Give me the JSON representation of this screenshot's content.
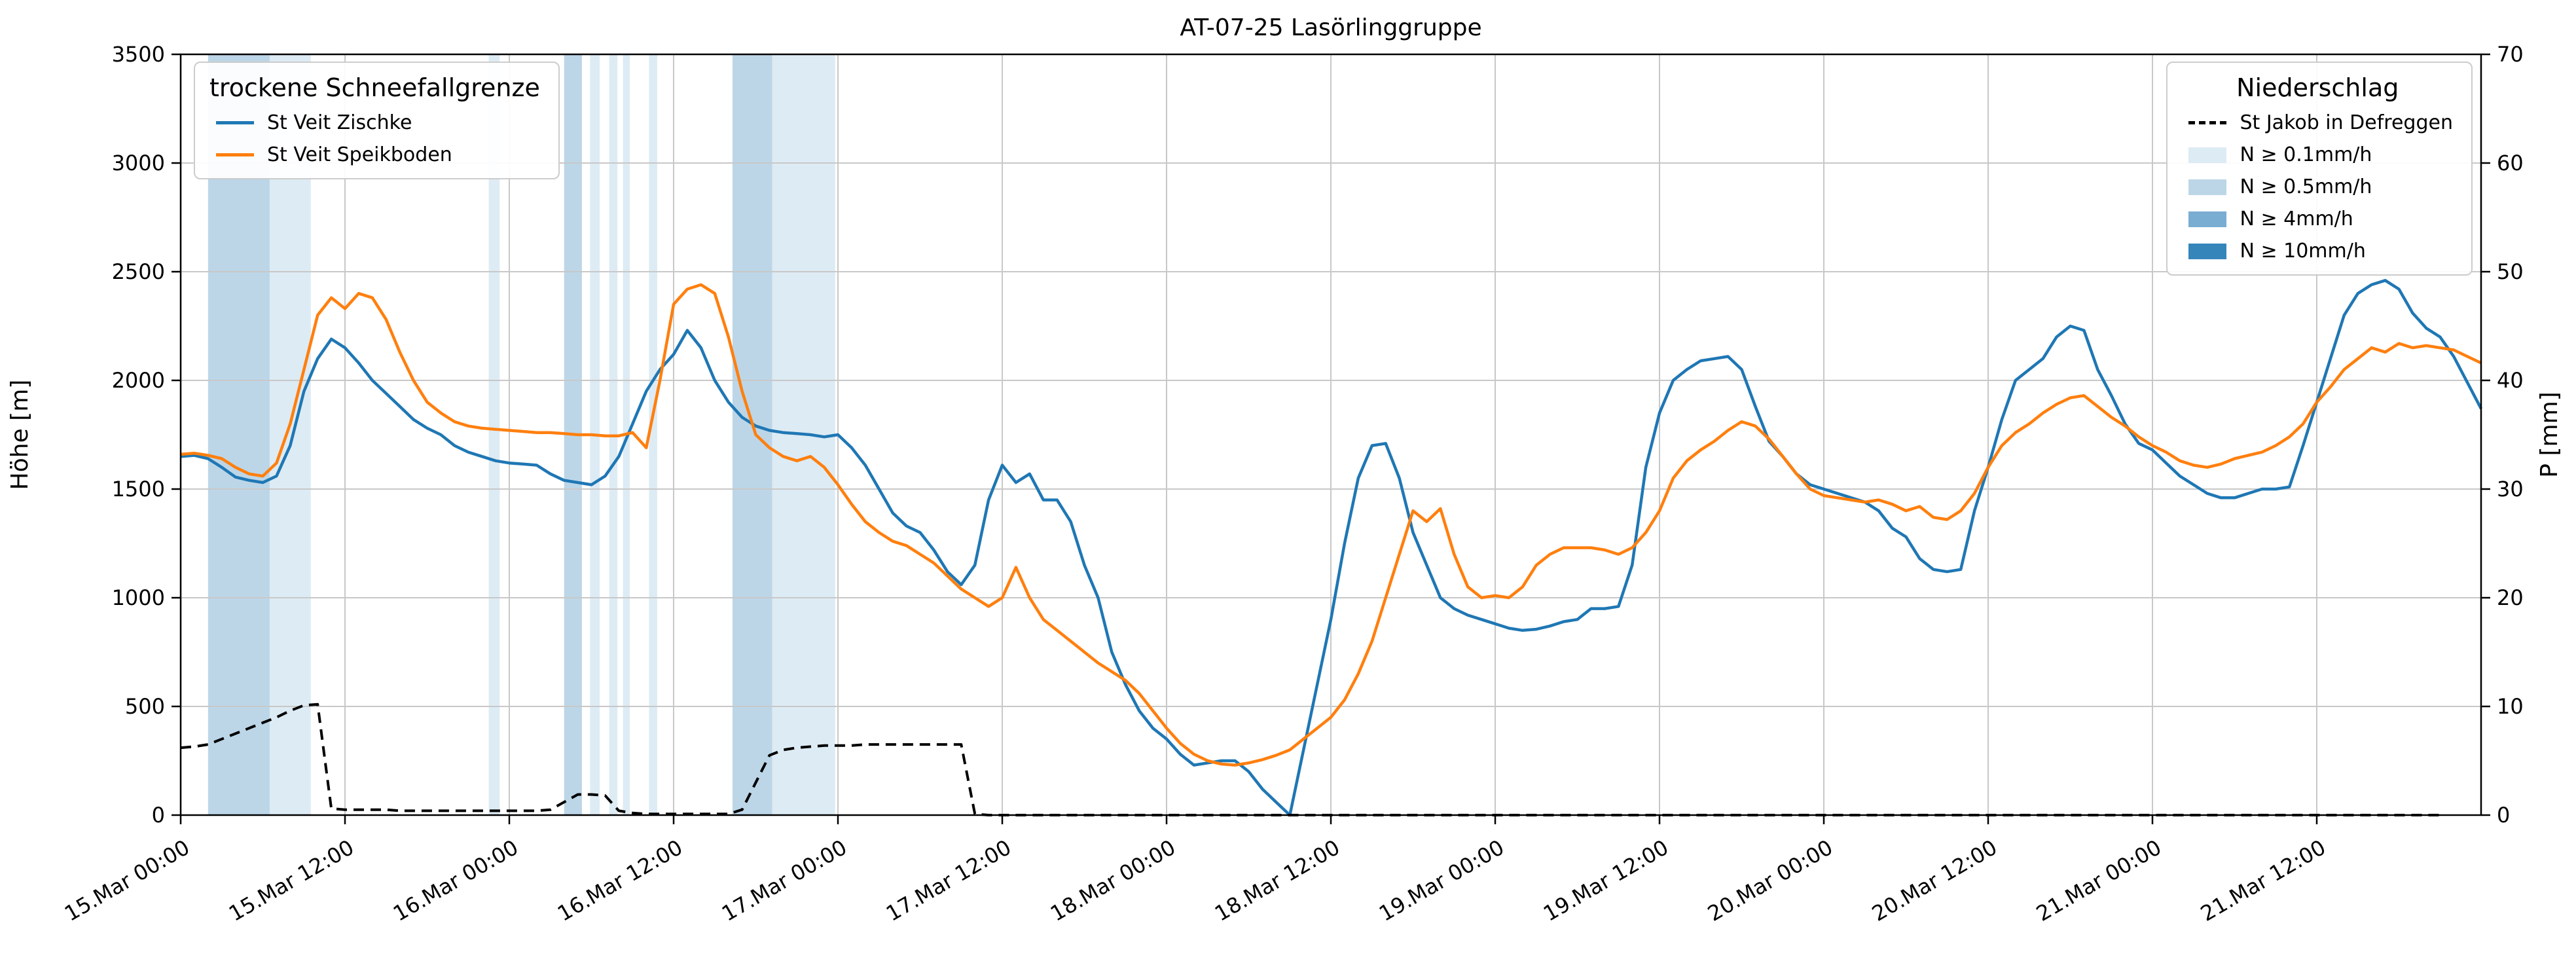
{
  "title": "AT-07-25 Lasörlinggruppe",
  "left_axis": {
    "label": "Höhe [m]",
    "min": 0,
    "max": 3500,
    "step": 500
  },
  "right_axis": {
    "label": "P [mm]",
    "min": 0,
    "max": 70,
    "step": 10
  },
  "x_axis": {
    "range_hours": [
      0,
      168
    ],
    "tick_hours": [
      0,
      12,
      24,
      36,
      48,
      60,
      72,
      84,
      96,
      108,
      120,
      132,
      144,
      156
    ],
    "tick_labels": [
      "15.Mar 00:00",
      "15.Mar 12:00",
      "16.Mar 00:00",
      "16.Mar 12:00",
      "17.Mar 00:00",
      "17.Mar 12:00",
      "18.Mar 00:00",
      "18.Mar 12:00",
      "19.Mar 00:00",
      "19.Mar 12:00",
      "20.Mar 00:00",
      "20.Mar 12:00",
      "21.Mar 00:00",
      "21.Mar 12:00"
    ]
  },
  "legend_snowline": {
    "title": "trockene Schneefallgrenze",
    "items": [
      {
        "label": "St Veit Zischke",
        "color": "#1f77b4"
      },
      {
        "label": "St Veit Speikboden",
        "color": "#ff7f0e"
      }
    ]
  },
  "legend_precip": {
    "title": "Niederschlag",
    "line_item": {
      "label": "St Jakob in Defreggen",
      "color": "#000000"
    },
    "band_items": [
      {
        "label": "N ≥ 0.1mm/h",
        "color": "#ddebf4"
      },
      {
        "label": "N ≥ 0.5mm/h",
        "color": "#bcd6e8"
      },
      {
        "label": "N ≥ 4mm/h",
        "color": "#79add2"
      },
      {
        "label": "N ≥ 10mm/h",
        "color": "#3585bb"
      }
    ]
  },
  "chart_data": {
    "type": "line",
    "title": "AT-07-25 Lasörlinggruppe",
    "x_unit": "hours since 15.Mar 00:00, hourly steps, axis ends 22.Mar 00:00",
    "grid": true,
    "band_colors": {
      "0.1": "#ddebf4",
      "0.5": "#bcd6e8",
      "4": "#79add2",
      "10": "#3585bb"
    },
    "precip_bands": [
      {
        "start": 2.0,
        "end": 6.5,
        "level": "0.5"
      },
      {
        "start": 6.5,
        "end": 9.5,
        "level": "0.1"
      },
      {
        "start": 22.5,
        "end": 23.3,
        "level": "0.1"
      },
      {
        "start": 28.0,
        "end": 29.3,
        "level": "0.5"
      },
      {
        "start": 29.9,
        "end": 30.6,
        "level": "0.1"
      },
      {
        "start": 31.3,
        "end": 31.9,
        "level": "0.1"
      },
      {
        "start": 32.3,
        "end": 32.8,
        "level": "0.1"
      },
      {
        "start": 34.2,
        "end": 34.8,
        "level": "0.1"
      },
      {
        "start": 40.3,
        "end": 43.2,
        "level": "0.5"
      },
      {
        "start": 43.2,
        "end": 47.8,
        "level": "0.1"
      }
    ],
    "series": [
      {
        "name": "St Veit Zischke",
        "axis": "left",
        "unit": "m",
        "color": "#1f77b4",
        "style": "solid",
        "values": [
          1650,
          1655,
          1640,
          1600,
          1555,
          1540,
          1530,
          1560,
          1700,
          1950,
          2100,
          2190,
          2150,
          2080,
          2000,
          1940,
          1880,
          1820,
          1780,
          1750,
          1700,
          1670,
          1650,
          1630,
          1620,
          1615,
          1610,
          1570,
          1540,
          1530,
          1520,
          1560,
          1650,
          1800,
          1950,
          2050,
          2120,
          2230,
          2150,
          2000,
          1900,
          1830,
          1790,
          1770,
          1760,
          1755,
          1750,
          1740,
          1750,
          1690,
          1610,
          1500,
          1390,
          1330,
          1300,
          1220,
          1120,
          1060,
          1150,
          1450,
          1610,
          1530,
          1570,
          1450,
          1450,
          1350,
          1150,
          1000,
          750,
          600,
          480,
          400,
          350,
          280,
          230,
          240,
          250,
          250,
          200,
          120,
          60,
          0,
          300,
          600,
          900,
          1250,
          1550,
          1700,
          1710,
          1550,
          1300,
          1150,
          1000,
          950,
          920,
          900,
          880,
          860,
          850,
          855,
          870,
          890,
          900,
          950,
          950,
          960,
          1150,
          1600,
          1850,
          2000,
          2050,
          2090,
          2100,
          2110,
          2050,
          1880,
          1720,
          1650,
          1570,
          1520,
          1500,
          1480,
          1460,
          1440,
          1400,
          1320,
          1280,
          1180,
          1130,
          1120,
          1130,
          1400,
          1600,
          1820,
          2000,
          2050,
          2100,
          2200,
          2250,
          2230,
          2050,
          1930,
          1800,
          1710,
          1680,
          1620,
          1560,
          1520,
          1480,
          1460,
          1460,
          1480,
          1500,
          1500,
          1510,
          1700,
          1900,
          2100,
          2300,
          2400,
          2440,
          2460,
          2420,
          2310,
          2240,
          2200,
          2110,
          1990,
          1870
        ]
      },
      {
        "name": "St Veit Speikboden",
        "axis": "left",
        "unit": "m",
        "color": "#ff7f0e",
        "style": "solid",
        "values": [
          1660,
          1665,
          1655,
          1640,
          1600,
          1570,
          1560,
          1620,
          1800,
          2050,
          2300,
          2380,
          2330,
          2400,
          2380,
          2280,
          2130,
          2000,
          1900,
          1850,
          1810,
          1790,
          1780,
          1775,
          1770,
          1765,
          1760,
          1760,
          1755,
          1750,
          1750,
          1745,
          1745,
          1760,
          1690,
          2000,
          2350,
          2420,
          2440,
          2400,
          2200,
          1950,
          1750,
          1690,
          1650,
          1630,
          1650,
          1600,
          1520,
          1430,
          1350,
          1300,
          1260,
          1240,
          1200,
          1160,
          1100,
          1040,
          1000,
          960,
          1000,
          1140,
          1000,
          900,
          850,
          800,
          750,
          700,
          660,
          620,
          560,
          480,
          400,
          330,
          280,
          250,
          235,
          230,
          240,
          255,
          275,
          300,
          350,
          400,
          450,
          530,
          650,
          800,
          1000,
          1200,
          1400,
          1350,
          1410,
          1200,
          1050,
          1000,
          1010,
          1000,
          1050,
          1150,
          1200,
          1230,
          1230,
          1230,
          1220,
          1200,
          1230,
          1300,
          1400,
          1550,
          1630,
          1680,
          1720,
          1770,
          1810,
          1790,
          1730,
          1650,
          1570,
          1500,
          1470,
          1460,
          1450,
          1440,
          1450,
          1430,
          1400,
          1420,
          1370,
          1360,
          1400,
          1480,
          1600,
          1700,
          1760,
          1800,
          1850,
          1890,
          1920,
          1930,
          1880,
          1830,
          1790,
          1740,
          1700,
          1670,
          1630,
          1610,
          1600,
          1615,
          1640,
          1655,
          1670,
          1700,
          1740,
          1800,
          1900,
          1970,
          2050,
          2100,
          2150,
          2130,
          2170,
          2150,
          2160,
          2150,
          2140,
          2110,
          2080
        ]
      },
      {
        "name": "St Jakob in Defreggen",
        "axis": "right",
        "unit": "mm",
        "color": "#000000",
        "style": "dashed",
        "values": [
          6.2,
          6.3,
          6.5,
          7,
          7.5,
          8,
          8.5,
          9,
          9.6,
          10.1,
          10.2,
          0.6,
          0.5,
          0.5,
          0.5,
          0.5,
          0.4,
          0.4,
          0.4,
          0.4,
          0.4,
          0.4,
          0.4,
          0.4,
          0.4,
          0.4,
          0.4,
          0.5,
          1.2,
          1.9,
          1.9,
          1.8,
          0.4,
          0.2,
          0.1,
          0.1,
          0.1,
          0.1,
          0.1,
          0.1,
          0.1,
          0.5,
          3,
          5.5,
          6,
          6.2,
          6.3,
          6.4,
          6.4,
          6.4,
          6.5,
          6.5,
          6.5,
          6.5,
          6.5,
          6.5,
          6.5,
          6.5,
          0.1,
          0,
          0,
          0,
          0,
          0,
          0,
          0,
          0,
          0,
          0,
          0,
          0,
          0,
          0,
          0,
          0,
          0,
          0,
          0,
          0,
          0,
          0,
          0,
          0,
          0,
          0,
          0,
          0,
          0,
          0,
          0,
          0,
          0,
          0,
          0,
          0,
          0,
          0,
          0,
          0,
          0,
          0,
          0,
          0,
          0,
          0,
          0,
          0,
          0,
          0,
          0,
          0,
          0,
          0,
          0,
          0,
          0,
          0,
          0,
          0,
          0,
          0,
          0,
          0,
          0,
          0,
          0,
          0,
          0,
          0,
          0,
          0,
          0,
          0,
          0,
          0,
          0,
          0,
          0,
          0,
          0,
          0,
          0,
          0,
          0,
          0,
          0,
          0,
          0,
          0,
          0,
          0,
          0,
          0,
          0,
          0,
          0,
          0,
          0,
          0,
          0,
          0,
          0,
          0,
          0,
          0,
          0
        ]
      }
    ]
  }
}
